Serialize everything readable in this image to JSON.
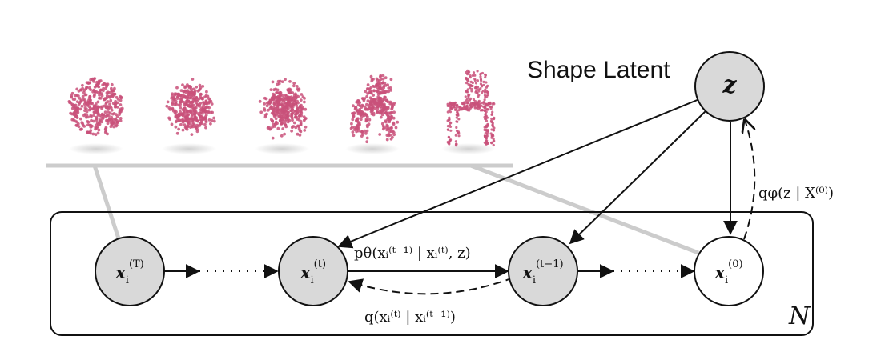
{
  "shape_latent": {
    "title": "Shape Latent",
    "node_label": "z"
  },
  "plate": {
    "label": "N"
  },
  "nodes": [
    {
      "base": "x",
      "sub": "i",
      "sup": "(T)",
      "shaded": true
    },
    {
      "base": "x",
      "sub": "i",
      "sup": "(t)",
      "shaded": true
    },
    {
      "base": "x",
      "sub": "i",
      "sup": "(t−1)",
      "shaded": true
    },
    {
      "base": "x",
      "sub": "i",
      "sup": "(0)",
      "shaded": false
    }
  ],
  "edges": {
    "reverse_label": "pθ(xᵢ⁽ᵗ⁻¹⁾ | xᵢ⁽ᵗ⁾, z)",
    "forward_label": "q(xᵢ⁽ᵗ⁾ | xᵢ⁽ᵗ⁻¹⁾)",
    "encoder_label": "qφ(z | X⁽⁰⁾)"
  },
  "point_clouds": {
    "count": 5,
    "color": "#c9517a",
    "stages": [
      "noise",
      "coarse",
      "partial",
      "refined",
      "chair"
    ]
  },
  "colors": {
    "node_fill": "#d9d9d9",
    "node_fill_observed": "#ffffff",
    "stroke": "#111111",
    "ground": "#cccccc"
  }
}
